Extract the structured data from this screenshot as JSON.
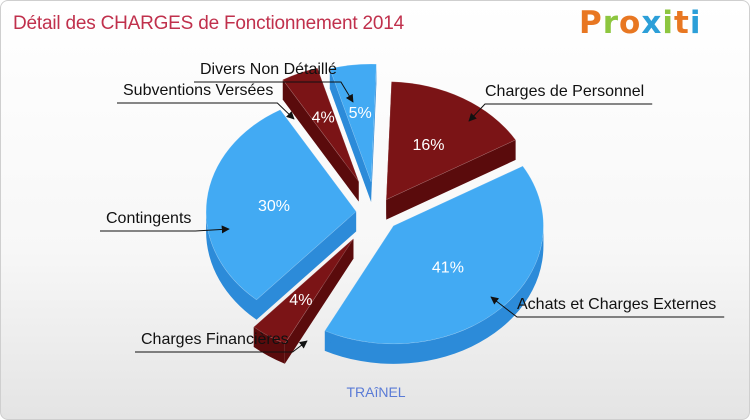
{
  "page": {
    "title": "Détail des CHARGES de Fonctionnement 2014",
    "logo_letters": [
      "P",
      "r",
      "o",
      "x",
      "i",
      "t",
      "i"
    ],
    "footer": "TRAîNEL"
  },
  "colors": {
    "blue": "#42aaf3",
    "blue_side": "#2c8bd9",
    "red": "#7b1416",
    "red_side": "#5a0b0c",
    "title": "#c0304c",
    "footer": "#5a7bd6"
  },
  "chart_data": {
    "type": "pie",
    "style": "3d-exploded",
    "title": "Détail des CHARGES de Fonctionnement 2014",
    "slices": [
      {
        "label": "Charges de Personnel",
        "value": 16,
        "pct_label": "16%",
        "color": "red"
      },
      {
        "label": "Achats et Charges Externes",
        "value": 41,
        "pct_label": "41%",
        "color": "blue"
      },
      {
        "label": "Charges Financières",
        "value": 4,
        "pct_label": "4%",
        "color": "red"
      },
      {
        "label": "Contingents",
        "value": 30,
        "pct_label": "30%",
        "color": "blue"
      },
      {
        "label": "Subventions Versées",
        "value": 4,
        "pct_label": "4%",
        "color": "red"
      },
      {
        "label": "Divers Non Détaillé",
        "value": 5,
        "pct_label": "5%",
        "color": "blue"
      }
    ]
  }
}
